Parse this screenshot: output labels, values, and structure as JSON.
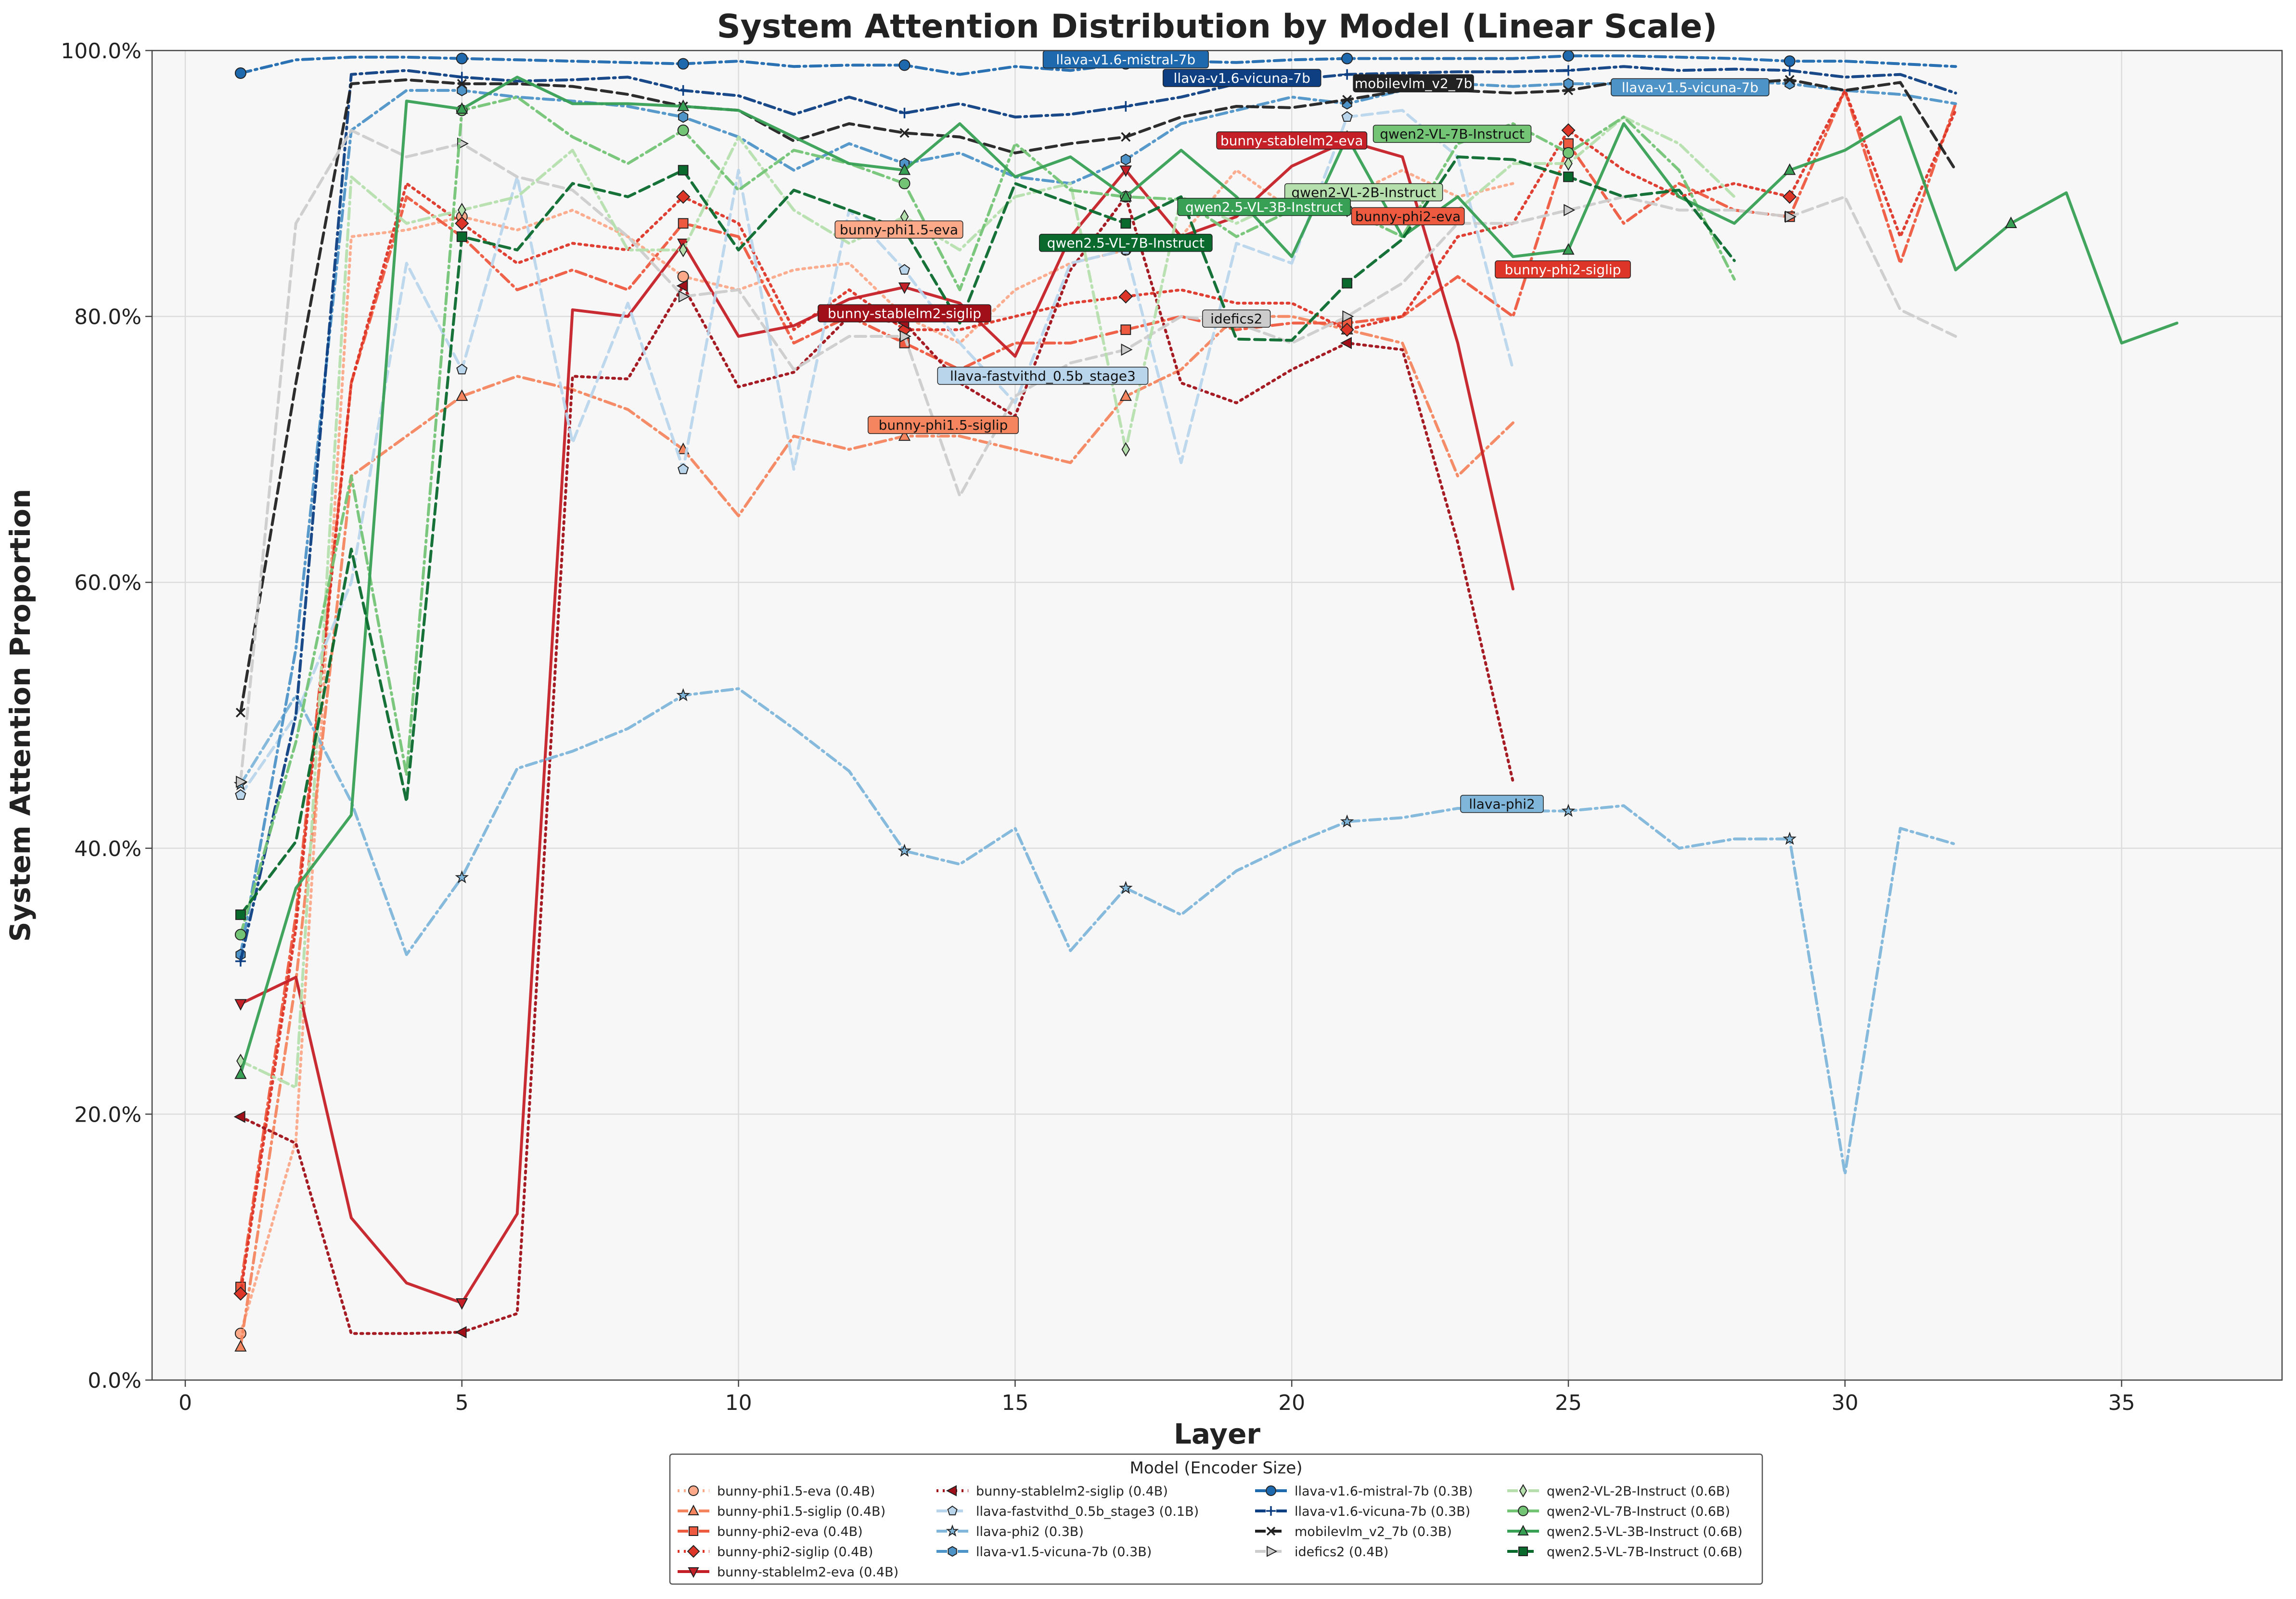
{
  "chart_data": {
    "type": "line",
    "title": "System Attention Distribution by Model (Linear Scale)",
    "xlabel": "Layer",
    "ylabel": "System Attention Proportion",
    "xlim": [
      -0.6,
      37.9
    ],
    "ylim": [
      0,
      100
    ],
    "xticks": [
      0,
      5,
      10,
      15,
      20,
      25,
      30,
      35
    ],
    "yticks": [
      0,
      20,
      40,
      60,
      80,
      100
    ],
    "ytick_labels": [
      "0.0%",
      "20.0%",
      "40.0%",
      "60.0%",
      "80.0%",
      "100.0%"
    ],
    "grid": true,
    "legend": {
      "title": "Model (Encoder Size)",
      "position": "bottom-center",
      "columns": 4
    },
    "series": [
      {
        "name": "bunny-phi1.5-eva (0.4B)",
        "short": "bunny-phi1.5-eva",
        "color": "#fca98a",
        "dash": "dot",
        "marker": "circle",
        "label_at": [
          12.9,
          86.5
        ],
        "x": [
          1,
          2,
          3,
          4,
          5,
          6,
          7,
          8,
          9,
          10,
          11,
          12,
          13,
          14,
          15,
          16,
          17,
          18,
          19,
          20,
          21,
          22,
          23,
          24
        ],
        "y": [
          3.5,
          18,
          86,
          86.5,
          87.5,
          86.5,
          88,
          86,
          83,
          82,
          83.5,
          84,
          80,
          78,
          82,
          84,
          85,
          86,
          91,
          88,
          89,
          91,
          89,
          90
        ]
      },
      {
        "name": "bunny-phi1.5-siglip (0.4B)",
        "short": "bunny-phi1.5-siglip",
        "color": "#f4855f",
        "dash": "dashdot",
        "marker": "triangle",
        "label_at": [
          13.7,
          71.8
        ],
        "x": [
          1,
          2,
          3,
          4,
          5,
          6,
          7,
          8,
          9,
          10,
          11,
          12,
          13,
          14,
          15,
          16,
          17,
          18,
          19,
          20,
          21,
          22,
          23,
          24
        ],
        "y": [
          2.5,
          30,
          68,
          71,
          74,
          75.5,
          74.5,
          73,
          70,
          65,
          71,
          70,
          71,
          71,
          70,
          69,
          74,
          76,
          80,
          80,
          79,
          78,
          68,
          72
        ]
      },
      {
        "name": "bunny-phi2-eva (0.4B)",
        "short": "bunny-phi2-eva",
        "color": "#ee5a3f",
        "dash": "dashdot",
        "marker": "square",
        "label_at": [
          22.1,
          87.5
        ],
        "x": [
          1,
          2,
          3,
          4,
          5,
          6,
          7,
          8,
          9,
          10,
          11,
          12,
          13,
          14,
          15,
          16,
          17,
          18,
          19,
          20,
          21,
          22,
          23,
          24,
          25,
          26,
          27,
          28,
          29,
          30,
          31,
          32
        ],
        "y": [
          7,
          35,
          75,
          89,
          86,
          82,
          83.5,
          82,
          87,
          86,
          78,
          80,
          78,
          76,
          78,
          78,
          79,
          80,
          79,
          79.5,
          79.5,
          80,
          83,
          80,
          93,
          87,
          90,
          88,
          87.5,
          97,
          84,
          96
        ]
      },
      {
        "name": "bunny-phi2-siglip (0.4B)",
        "short": "bunny-phi2-siglip",
        "color": "#dd3628",
        "dash": "dot",
        "marker": "diamond",
        "label_at": [
          24.9,
          83.5
        ],
        "x": [
          1,
          2,
          3,
          4,
          5,
          6,
          7,
          8,
          9,
          10,
          11,
          12,
          13,
          14,
          15,
          16,
          17,
          18,
          19,
          20,
          21,
          22,
          23,
          24,
          25,
          26,
          27,
          28,
          29,
          30,
          31,
          32
        ],
        "y": [
          6.5,
          34,
          75,
          90,
          87,
          84,
          85.5,
          85,
          89,
          87,
          79,
          82,
          79,
          79,
          80,
          81,
          81.5,
          82,
          81,
          81,
          79,
          80,
          86,
          87,
          94,
          91,
          89,
          90,
          89,
          97,
          86,
          95.5
        ]
      },
      {
        "name": "bunny-stablelm2-eva (0.4B)",
        "short": "bunny-stablelm2-eva",
        "color": "#c52027",
        "dash": "solid",
        "marker": "triangle-down",
        "label_at": [
          20.0,
          93.2
        ],
        "x": [
          1,
          2,
          3,
          4,
          5,
          6,
          7,
          8,
          9,
          10,
          11,
          12,
          13,
          14,
          15,
          16,
          17,
          18,
          19,
          20,
          21,
          22,
          23,
          24
        ],
        "y": [
          28.3,
          30.3,
          12.2,
          7.3,
          5.8,
          12.5,
          80.5,
          80,
          85.5,
          78.5,
          79.3,
          81.3,
          82.2,
          81,
          77,
          86,
          91,
          86,
          87.5,
          91.3,
          93.2,
          92,
          78,
          59.5
        ]
      },
      {
        "name": "bunny-stablelm2-siglip (0.4B)",
        "short": "bunny-stablelm2-siglip",
        "color": "#a11018",
        "dash": "dot",
        "marker": "triangle-left",
        "label_at": [
          13.0,
          80.2
        ],
        "x": [
          1,
          2,
          3,
          4,
          5,
          6,
          7,
          8,
          9,
          10,
          11,
          12,
          13,
          14,
          15,
          16,
          17,
          18,
          19,
          20,
          21,
          22,
          23,
          24
        ],
        "y": [
          19.8,
          17.8,
          3.5,
          3.5,
          3.6,
          5,
          75.5,
          75.3,
          82.3,
          74.7,
          75.8,
          80,
          79.5,
          75,
          72.5,
          83.5,
          89,
          75,
          73.5,
          76,
          78,
          77.5,
          63,
          45
        ]
      },
      {
        "name": "llava-fastvithd_0.5b_stage3 (0.1B)",
        "short": "llava-fastvithd_0.5b_stage3",
        "color": "#b9d5ec",
        "dash": "dash",
        "marker": "pentagon",
        "label_at": [
          15.5,
          75.5
        ],
        "x": [
          1,
          2,
          3,
          4,
          5,
          6,
          7,
          8,
          9,
          10,
          11,
          12,
          13,
          14,
          15,
          16,
          17,
          18,
          19,
          20,
          21,
          22,
          23,
          24
        ],
        "y": [
          44,
          50,
          60,
          84,
          76,
          90.5,
          70.5,
          81,
          68.5,
          91,
          68.5,
          88,
          83.5,
          78,
          73.5,
          84,
          85,
          69,
          85.5,
          84,
          95,
          95.5,
          92,
          76
        ]
      },
      {
        "name": "llava-phi2 (0.3B)",
        "short": "llava-phi2",
        "color": "#7fb6da",
        "dash": "dashdot",
        "marker": "star",
        "label_at": [
          23.8,
          43.3
        ],
        "x": [
          1,
          2,
          3,
          4,
          5,
          6,
          7,
          8,
          9,
          10,
          11,
          12,
          13,
          14,
          15,
          16,
          17,
          18,
          19,
          20,
          21,
          22,
          23,
          24,
          25,
          26,
          27,
          28,
          29,
          30,
          31,
          32
        ],
        "y": [
          44.8,
          51.5,
          43.5,
          32,
          37.8,
          46,
          47.3,
          49,
          51.5,
          52,
          49,
          45.8,
          39.8,
          38.8,
          41.5,
          32.3,
          37,
          35,
          38.3,
          40.3,
          42,
          42.3,
          43,
          42.8,
          42.8,
          43.2,
          40,
          40.7,
          40.7,
          15.5,
          41.5,
          40.3
        ]
      },
      {
        "name": "llava-v1.5-vicuna-7b (0.3B)",
        "short": "llava-v1.5-vicuna-7b",
        "color": "#4d93c7",
        "dash": "dashdot",
        "marker": "hexagon",
        "label_at": [
          27.2,
          97.2
        ],
        "x": [
          1,
          2,
          3,
          4,
          5,
          6,
          7,
          8,
          9,
          10,
          11,
          12,
          13,
          14,
          15,
          16,
          17,
          18,
          19,
          20,
          21,
          22,
          23,
          24,
          25,
          26,
          27,
          28,
          29,
          30,
          31,
          32
        ],
        "y": [
          32,
          55,
          94,
          97,
          97,
          96.5,
          96.2,
          95.8,
          95,
          93.5,
          91,
          93,
          91.5,
          92.3,
          90.5,
          90,
          91.8,
          94.5,
          95.5,
          96.5,
          96,
          97,
          97.5,
          97.3,
          97.5,
          97.5,
          97.5,
          97.7,
          97.5,
          97,
          96.7,
          96
        ]
      },
      {
        "name": "llava-v1.6-mistral-7b (0.3B)",
        "short": "llava-v1.6-mistral-7b",
        "color": "#1e69ae",
        "dash": "dashdot",
        "marker": "circle",
        "label_at": [
          17.0,
          99.3
        ],
        "x": [
          1,
          2,
          3,
          4,
          5,
          6,
          7,
          8,
          9,
          10,
          11,
          12,
          13,
          14,
          15,
          16,
          17,
          18,
          19,
          20,
          21,
          22,
          23,
          24,
          25,
          26,
          27,
          28,
          29,
          30,
          31,
          32
        ],
        "y": [
          98.3,
          99.3,
          99.5,
          99.5,
          99.4,
          99.3,
          99.2,
          99.1,
          99,
          99.2,
          98.8,
          98.9,
          98.9,
          98.2,
          98.8,
          98.5,
          99,
          99.2,
          99.1,
          99.3,
          99.4,
          99.4,
          99.4,
          99.4,
          99.6,
          99.6,
          99.5,
          99.4,
          99.2,
          99.2,
          99,
          98.8
        ]
      },
      {
        "name": "llava-v1.6-vicuna-7b (0.3B)",
        "short": "llava-v1.6-vicuna-7b",
        "color": "#0d3f82",
        "dash": "dashdot",
        "marker": "plus",
        "label_at": [
          19.1,
          97.9
        ],
        "x": [
          1,
          2,
          3,
          4,
          5,
          6,
          7,
          8,
          9,
          10,
          11,
          12,
          13,
          14,
          15,
          16,
          17,
          18,
          19,
          20,
          21,
          22,
          23,
          24,
          25,
          26,
          27,
          28,
          29,
          30,
          31,
          32
        ],
        "y": [
          31.5,
          50,
          98.2,
          98.5,
          98,
          97.7,
          97.8,
          98,
          97,
          96.6,
          95.2,
          96.5,
          95.3,
          96,
          95,
          95.2,
          95.8,
          96.5,
          97.5,
          97.8,
          98.2,
          98.3,
          98.4,
          98.4,
          98.5,
          98.8,
          98.5,
          98.6,
          98.5,
          98,
          98.2,
          96.8
        ]
      },
      {
        "name": "mobilevlm_v2_7b (0.3B)",
        "short": "mobilevlm_v2_7b",
        "color": "#222222",
        "dash": "dash",
        "marker": "x",
        "label_at": [
          22.2,
          97.5
        ],
        "x": [
          1,
          2,
          3,
          4,
          5,
          6,
          7,
          8,
          9,
          10,
          11,
          12,
          13,
          14,
          15,
          16,
          17,
          18,
          19,
          20,
          21,
          22,
          23,
          24,
          25,
          26,
          27,
          28,
          29,
          30,
          31,
          32
        ],
        "y": [
          50.2,
          75,
          97.5,
          97.8,
          97.5,
          97.5,
          97.3,
          96.7,
          95.8,
          95.5,
          93.2,
          94.5,
          93.8,
          93.5,
          92.3,
          93,
          93.5,
          95,
          95.8,
          95.7,
          96.3,
          97,
          97,
          96.8,
          97,
          97.7,
          97.5,
          97.5,
          97.8,
          97,
          97.6,
          91
        ]
      },
      {
        "name": "idefics2 (0.4B)",
        "short": "idefics2",
        "color": "#cccccc",
        "dash": "dash",
        "marker": "triangle-right",
        "label_at": [
          19.0,
          79.8
        ],
        "x": [
          1,
          2,
          3,
          4,
          5,
          6,
          7,
          8,
          9,
          10,
          11,
          12,
          13,
          14,
          15,
          16,
          17,
          18,
          19,
          20,
          21,
          22,
          23,
          24,
          25,
          26,
          27,
          28,
          29,
          30,
          31,
          32
        ],
        "y": [
          45,
          87,
          94,
          92,
          93,
          90.5,
          89.5,
          86,
          81.5,
          82,
          76,
          78.5,
          78.5,
          66.5,
          74,
          76.5,
          77.5,
          80,
          79.5,
          78,
          80,
          82.5,
          87,
          87,
          88,
          89,
          88,
          88,
          87.5,
          89,
          80.5,
          78.5
        ]
      },
      {
        "name": "qwen2-VL-2B-Instruct (0.6B)",
        "short": "qwen2-VL-2B-Instruct",
        "color": "#b5dfad",
        "dash": "dashdot",
        "marker": "diamond-thin",
        "label_at": [
          21.3,
          89.3
        ],
        "x": [
          1,
          2,
          3,
          4,
          5,
          6,
          7,
          8,
          9,
          10,
          11,
          12,
          13,
          14,
          15,
          16,
          17,
          18,
          19,
          20,
          21,
          22,
          23,
          24,
          25,
          26,
          27,
          28
        ],
        "y": [
          24,
          22,
          90.5,
          87,
          88,
          89,
          92.5,
          85,
          85,
          93.5,
          88,
          85.5,
          87.5,
          85,
          89,
          90,
          70,
          89,
          87,
          89,
          88,
          87.5,
          88,
          91.5,
          91.5,
          95,
          93,
          89
        ]
      },
      {
        "name": "qwen2-VL-7B-Instruct (0.6B)",
        "short": "qwen2-VL-7B-Instruct",
        "color": "#74c476",
        "dash": "dashdot",
        "marker": "circle",
        "label_at": [
          22.9,
          93.7
        ],
        "x": [
          1,
          2,
          3,
          4,
          5,
          6,
          7,
          8,
          9,
          10,
          11,
          12,
          13,
          14,
          15,
          16,
          17,
          18,
          19,
          20,
          21,
          22,
          23,
          24,
          25,
          26,
          27,
          28
        ],
        "y": [
          33.5,
          48,
          68,
          45.5,
          95.5,
          96.5,
          93.5,
          91.5,
          94,
          89.5,
          92.5,
          91.5,
          90,
          82,
          93,
          89.5,
          89,
          88.8,
          86,
          88,
          88,
          86,
          93,
          94.5,
          92.3,
          95,
          91,
          82.8
        ]
      },
      {
        "name": "qwen2.5-VL-3B-Instruct (0.6B)",
        "short": "qwen2.5-VL-3B-Instruct",
        "color": "#38a055",
        "dash": "solid",
        "marker": "triangle",
        "label_at": [
          19.5,
          88.2
        ],
        "x": [
          1,
          2,
          3,
          4,
          5,
          6,
          7,
          8,
          9,
          10,
          11,
          12,
          13,
          14,
          15,
          16,
          17,
          18,
          19,
          20,
          21,
          22,
          23,
          24,
          25,
          26,
          27,
          28,
          29,
          30,
          31,
          32,
          33,
          34,
          35,
          36
        ],
        "y": [
          23,
          37,
          42.5,
          96.2,
          95.6,
          98,
          96,
          96,
          95.8,
          95.5,
          93.5,
          91.5,
          91,
          94.5,
          90.5,
          92,
          89,
          92.5,
          89,
          84.5,
          93.5,
          86,
          89,
          84.5,
          85,
          94.5,
          89,
          87,
          91,
          92.5,
          95,
          83.5,
          87,
          89.3,
          78,
          79.5
        ]
      },
      {
        "name": "qwen2.5-VL-7B-Instruct (0.6B)",
        "short": "qwen2.5-VL-7B-Instruct",
        "color": "#0a6a2d",
        "dash": "dash",
        "marker": "square",
        "label_at": [
          17.0,
          85.5
        ],
        "x": [
          1,
          2,
          3,
          4,
          5,
          6,
          7,
          8,
          9,
          10,
          11,
          12,
          13,
          14,
          15,
          16,
          17,
          18,
          19,
          20,
          21,
          22,
          23,
          24,
          25,
          26,
          27,
          28
        ],
        "y": [
          35,
          40.5,
          62.5,
          43.5,
          86,
          85,
          90,
          89,
          91,
          85,
          89.5,
          88,
          86.5,
          79.5,
          90,
          88.5,
          87,
          89,
          78.3,
          78.2,
          82.5,
          85.8,
          92,
          91.8,
          90.5,
          89,
          89.5,
          84.2
        ]
      }
    ]
  }
}
